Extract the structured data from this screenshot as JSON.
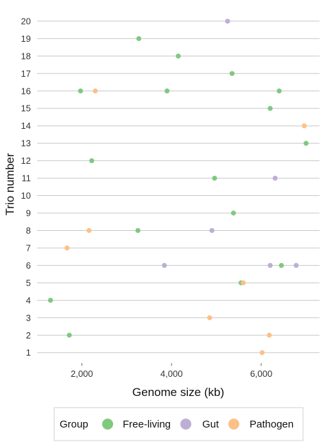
{
  "chart_data": {
    "type": "scatter",
    "xlabel": "Genome size (kb)",
    "ylabel": "Trio number",
    "xlim": [
      1000,
      7300
    ],
    "ylim": [
      0.4,
      20.9
    ],
    "x_ticks": [
      2000,
      4000,
      6000
    ],
    "x_tick_labels": [
      "2,000",
      "4,000",
      "6,000"
    ],
    "y_ticks": [
      1,
      2,
      3,
      4,
      5,
      6,
      7,
      8,
      9,
      10,
      11,
      12,
      13,
      14,
      15,
      16,
      17,
      18,
      19,
      20
    ],
    "y_tick_labels": [
      "1",
      "2",
      "3",
      "4",
      "5",
      "6",
      "7",
      "8",
      "9",
      "10",
      "11",
      "12",
      "13",
      "14",
      "15",
      "16",
      "17",
      "18",
      "19",
      "20"
    ],
    "grid": "horizontal",
    "legend": {
      "title": "Group",
      "placement": "bottom",
      "entries": [
        {
          "name": "Free-living",
          "color": "#7fc97f"
        },
        {
          "name": "Gut",
          "color": "#beaed4"
        },
        {
          "name": "Pathogen",
          "color": "#fdc086"
        }
      ]
    },
    "series": [
      {
        "name": "Free-living",
        "color": "#7fc97f",
        "points": [
          {
            "x": 3270,
            "y": 19
          },
          {
            "x": 4150,
            "y": 18
          },
          {
            "x": 5350,
            "y": 17
          },
          {
            "x": 1970,
            "y": 16
          },
          {
            "x": 3900,
            "y": 16
          },
          {
            "x": 6400,
            "y": 16
          },
          {
            "x": 6200,
            "y": 15
          },
          {
            "x": 7000,
            "y": 13
          },
          {
            "x": 2220,
            "y": 12
          },
          {
            "x": 4960,
            "y": 11
          },
          {
            "x": 5380,
            "y": 9
          },
          {
            "x": 3250,
            "y": 8
          },
          {
            "x": 6450,
            "y": 6
          },
          {
            "x": 5550,
            "y": 5
          },
          {
            "x": 1300,
            "y": 4
          },
          {
            "x": 1720,
            "y": 2
          }
        ]
      },
      {
        "name": "Gut",
        "color": "#beaed4",
        "points": [
          {
            "x": 5250,
            "y": 20
          },
          {
            "x": 6310,
            "y": 11
          },
          {
            "x": 4900,
            "y": 8
          },
          {
            "x": 3840,
            "y": 6
          },
          {
            "x": 6200,
            "y": 6
          },
          {
            "x": 6780,
            "y": 6
          }
        ]
      },
      {
        "name": "Pathogen",
        "color": "#fdc086",
        "points": [
          {
            "x": 2300,
            "y": 16
          },
          {
            "x": 6960,
            "y": 14
          },
          {
            "x": 2160,
            "y": 8
          },
          {
            "x": 1670,
            "y": 7
          },
          {
            "x": 5600,
            "y": 5
          },
          {
            "x": 4850,
            "y": 3
          },
          {
            "x": 6180,
            "y": 2
          },
          {
            "x": 6020,
            "y": 1
          }
        ]
      }
    ]
  }
}
